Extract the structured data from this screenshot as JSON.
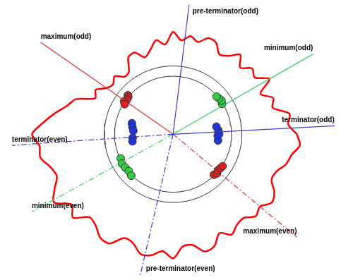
{
  "chart_data": {
    "type": "scatter",
    "tick_labels": false,
    "grid": false,
    "xlim": [
      -245,
      255
    ],
    "ylim": [
      -207,
      190
    ],
    "reference_circles": [
      85,
      100
    ],
    "directions": [
      {
        "name": "pre-terminator(odd)",
        "angle": 83,
        "color": "#3a3acc",
        "line_style": "solid"
      },
      {
        "name": "pre-terminator(even)",
        "angle": 257,
        "color": "#3a3acc",
        "line_style": "dashdot"
      },
      {
        "name": "terminator(odd)",
        "angle": 3,
        "color": "#3a3acc",
        "line_style": "solid"
      },
      {
        "name": "terminator(even)",
        "angle": 184,
        "color": "#3a3acc",
        "line_style": "dashdot"
      },
      {
        "name": "minimum(odd)",
        "angle": 30,
        "color": "#33cc66",
        "line_style": "solid"
      },
      {
        "name": "minimum(even)",
        "angle": 209,
        "color": "#33cc66",
        "line_style": "dashdot"
      },
      {
        "name": "maximum(odd)",
        "angle": 145,
        "color": "#e03030",
        "line_style": "solid"
      },
      {
        "name": "maximum(even)",
        "angle": 320,
        "color": "#e03030",
        "line_style": "dashdot"
      }
    ],
    "profile": {
      "color": "#ff0000",
      "line_style": "solid",
      "angles": [
        0,
        5,
        10,
        15,
        20,
        25,
        30,
        35,
        40,
        45,
        50,
        55,
        60,
        65,
        70,
        75,
        80,
        85,
        90,
        95,
        100,
        105,
        110,
        115,
        120,
        125,
        130,
        135,
        140,
        145,
        150,
        155,
        160,
        165,
        170,
        175,
        180,
        185,
        190,
        195,
        200,
        205,
        210,
        215,
        220,
        225,
        230,
        235,
        240,
        245,
        250,
        255,
        260,
        265,
        270,
        275,
        280,
        285,
        290,
        295,
        300,
        305,
        310,
        315,
        320,
        325,
        330,
        335,
        340,
        345,
        350,
        355
      ],
      "radii": [
        180,
        168,
        172,
        150,
        155,
        140,
        162,
        145,
        150,
        138,
        152,
        140,
        135,
        148,
        150,
        140,
        146,
        138,
        150,
        132,
        140,
        128,
        120,
        132,
        130,
        112,
        110,
        120,
        114,
        118,
        130,
        125,
        150,
        160,
        175,
        190,
        205,
        195,
        196,
        185,
        180,
        190,
        200,
        180,
        190,
        172,
        175,
        185,
        185,
        168,
        170,
        182,
        180,
        172,
        182,
        165,
        165,
        178,
        175,
        160,
        170,
        162,
        160,
        170,
        165,
        175,
        170,
        158,
        160,
        170,
        175,
        185
      ]
    },
    "series": [
      {
        "color": "#e02020",
        "marker": "circle",
        "angles": [
          139,
          140,
          143,
          146,
          148
        ],
        "radii": [
          87,
          85,
          84,
          86,
          83
        ]
      },
      {
        "color": "#e02020",
        "marker": "circle",
        "angles": [
          315,
          318,
          321,
          324,
          327
        ],
        "radii": [
          84,
          86,
          84,
          85,
          86
        ]
      },
      {
        "color": "#33cc44",
        "marker": "circle",
        "angles": [
          32,
          35,
          38,
          41
        ],
        "radii": [
          84,
          86,
          85,
          84
        ]
      },
      {
        "color": "#33cc44",
        "marker": "circle",
        "angles": [
          205,
          210,
          215,
          220,
          225
        ],
        "radii": [
          84,
          86,
          85,
          84,
          86
        ]
      },
      {
        "color": "#2233dd",
        "marker": "circle",
        "angles": [
          352,
          358,
          0,
          5,
          10
        ],
        "radii": [
          66,
          65,
          67,
          66,
          64
        ]
      },
      {
        "color": "#2233dd",
        "marker": "circle",
        "angles": [
          165,
          170,
          175,
          185,
          190
        ],
        "radii": [
          62,
          60,
          58,
          59,
          60
        ]
      }
    ]
  }
}
